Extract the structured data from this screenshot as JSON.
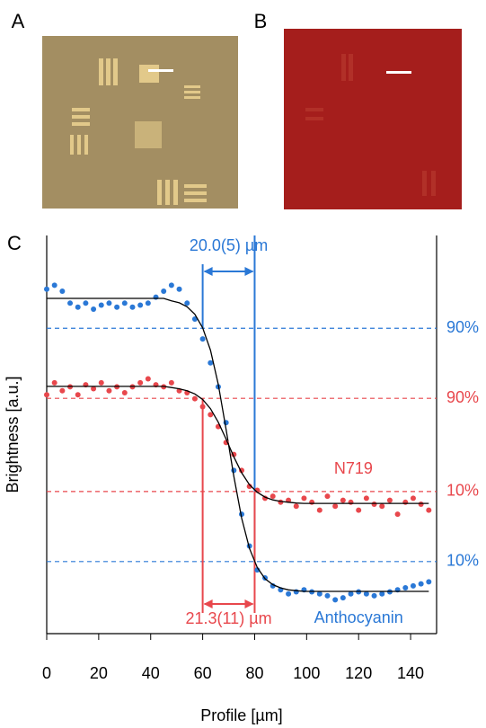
{
  "panels": {
    "a": "A",
    "b": "B",
    "c": "C"
  },
  "chart_data": {
    "type": "scatter",
    "xlabel": "Profile [µm]",
    "ylabel": "Brightness [a.u.]",
    "xlim": [
      0,
      150
    ],
    "xticks": [
      0,
      20,
      40,
      60,
      80,
      100,
      120,
      140
    ],
    "ylim": [
      0,
      1
    ],
    "x": [
      0,
      3,
      6,
      9,
      12,
      15,
      18,
      21,
      24,
      27,
      30,
      33,
      36,
      39,
      42,
      45,
      48,
      51,
      54,
      57,
      60,
      63,
      66,
      69,
      72,
      75,
      78,
      81,
      84,
      87,
      90,
      93,
      96,
      99,
      102,
      105,
      108,
      111,
      114,
      117,
      120,
      123,
      126,
      129,
      132,
      135,
      138,
      141,
      144,
      147
    ],
    "series": [
      {
        "name": "Anthocyanin",
        "color": "#2a78d6",
        "values": [
          0.865,
          0.875,
          0.86,
          0.83,
          0.82,
          0.83,
          0.815,
          0.825,
          0.83,
          0.82,
          0.83,
          0.82,
          0.825,
          0.83,
          0.845,
          0.86,
          0.875,
          0.865,
          0.83,
          0.79,
          0.74,
          0.68,
          0.62,
          0.53,
          0.41,
          0.3,
          0.22,
          0.16,
          0.14,
          0.12,
          0.11,
          0.1,
          0.105,
          0.11,
          0.105,
          0.1,
          0.095,
          0.085,
          0.09,
          0.1,
          0.105,
          0.1,
          0.095,
          0.1,
          0.105,
          0.11,
          0.115,
          0.12,
          0.125,
          0.13
        ],
        "fit": [
          0.842,
          0.842,
          0.842,
          0.842,
          0.842,
          0.842,
          0.842,
          0.842,
          0.842,
          0.842,
          0.842,
          0.842,
          0.842,
          0.842,
          0.842,
          0.842,
          0.836,
          0.831,
          0.821,
          0.802,
          0.768,
          0.712,
          0.626,
          0.514,
          0.395,
          0.29,
          0.214,
          0.166,
          0.138,
          0.123,
          0.115,
          0.11,
          0.108,
          0.106,
          0.106,
          0.106,
          0.106,
          0.106,
          0.106,
          0.106,
          0.106,
          0.106,
          0.106,
          0.106,
          0.106,
          0.106,
          0.106,
          0.106,
          0.106,
          0.106
        ]
      },
      {
        "name": "N719",
        "color": "#e8474c",
        "values": [
          0.6,
          0.63,
          0.61,
          0.62,
          0.6,
          0.625,
          0.615,
          0.63,
          0.61,
          0.62,
          0.605,
          0.62,
          0.63,
          0.64,
          0.625,
          0.62,
          0.63,
          0.61,
          0.605,
          0.59,
          0.57,
          0.55,
          0.52,
          0.48,
          0.45,
          0.41,
          0.37,
          0.36,
          0.34,
          0.345,
          0.33,
          0.335,
          0.32,
          0.34,
          0.33,
          0.31,
          0.345,
          0.32,
          0.335,
          0.33,
          0.31,
          0.34,
          0.325,
          0.32,
          0.335,
          0.3,
          0.33,
          0.34,
          0.325,
          0.31
        ],
        "fit": [
          0.621,
          0.621,
          0.621,
          0.621,
          0.621,
          0.621,
          0.621,
          0.621,
          0.621,
          0.621,
          0.621,
          0.621,
          0.621,
          0.621,
          0.621,
          0.621,
          0.618,
          0.615,
          0.61,
          0.602,
          0.588,
          0.565,
          0.531,
          0.489,
          0.444,
          0.404,
          0.374,
          0.355,
          0.343,
          0.336,
          0.332,
          0.33,
          0.328,
          0.327,
          0.327,
          0.327,
          0.327,
          0.327,
          0.327,
          0.327,
          0.327,
          0.327,
          0.327,
          0.327,
          0.327,
          0.327,
          0.327,
          0.327,
          0.327,
          0.327
        ]
      }
    ],
    "reference_lines": [
      {
        "value": 0.767,
        "label": "90%",
        "color": "#2a78d6"
      },
      {
        "value": 0.591,
        "label": "90%",
        "color": "#e8474c"
      },
      {
        "value": 0.357,
        "label": "10%",
        "color": "#e8474c"
      },
      {
        "value": 0.181,
        "label": "10%",
        "color": "#2a78d6"
      }
    ],
    "spans": [
      {
        "x": [
          60,
          80
        ],
        "label": "20.0(5) µm",
        "color": "#2a78d6"
      },
      {
        "x": [
          60,
          80
        ],
        "label": "21.3(11) µm",
        "color": "#e8474c"
      }
    ]
  }
}
